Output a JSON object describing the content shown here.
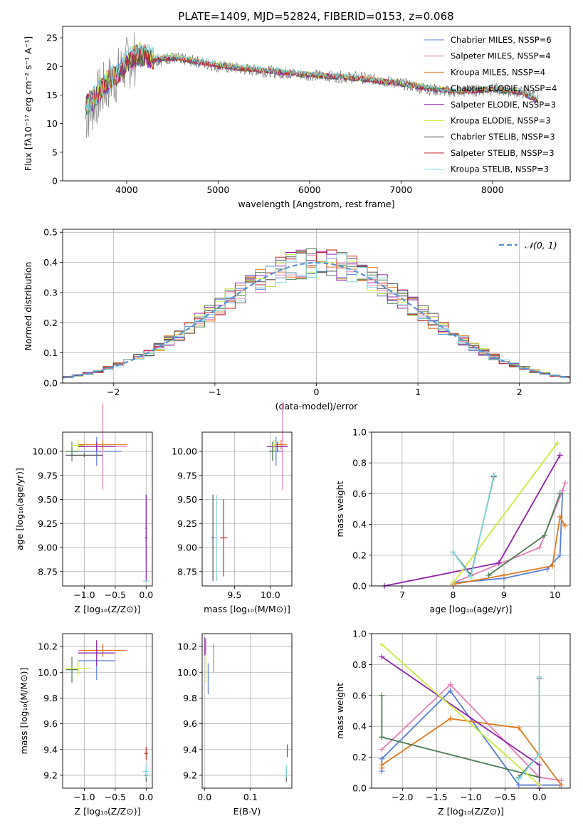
{
  "figure": {
    "title": "PLATE=1409, MJD=52824, FIBERID=0153, z=0.068"
  },
  "chart_data": [
    {
      "id": "spectrum",
      "type": "line",
      "xlabel": "wavelength [Angstrom, rest frame]",
      "ylabel": "Flux [fλ10⁻¹⁷ erg cm⁻² s⁻¹ A⁻¹]",
      "xlim": [
        3300,
        8850
      ],
      "ylim": [
        0,
        27
      ],
      "xticks": [
        4000,
        5000,
        6000,
        7000,
        8000
      ],
      "yticks": [
        0,
        5,
        10,
        15,
        20,
        25
      ],
      "legend_position": "top-right",
      "data_color": "#808080",
      "x": [
        3550,
        3700,
        3800,
        3900,
        4000,
        4100,
        4200,
        4300,
        4500,
        4700,
        5000,
        5300,
        5600,
        6000,
        6300,
        6600,
        7000,
        7300,
        7600,
        8000,
        8300,
        8500
      ],
      "data_flux": [
        11,
        15,
        17,
        18.5,
        20.5,
        21.5,
        22,
        21,
        21.5,
        21,
        20,
        19.5,
        19,
        18.5,
        18.2,
        18,
        17,
        16,
        15.5,
        16,
        15.5,
        15
      ],
      "series": [
        {
          "name": "Chabrier MILES, N_SSP=6",
          "color": "#5b7fd6",
          "values": [
            13,
            15.5,
            17.5,
            18.5,
            20.5,
            21.8,
            22,
            21.2,
            21.5,
            21,
            20.2,
            19.6,
            19.2,
            18.5,
            18.2,
            17.8,
            17,
            16.2,
            15.6,
            16,
            15.6,
            14
          ]
        },
        {
          "name": "Salpeter MILES, N_SSP=4",
          "color": "#e57fb8",
          "values": [
            13.2,
            15.6,
            17.6,
            18.6,
            20.6,
            21.9,
            22.1,
            21.3,
            21.6,
            21.1,
            20.3,
            19.7,
            19.3,
            18.6,
            18.3,
            17.9,
            17.1,
            16.3,
            15.7,
            16.1,
            15.7,
            14.1
          ]
        },
        {
          "name": "Kroupa MILES, N_SSP=4",
          "color": "#e07b1f",
          "values": [
            13.1,
            15.5,
            17.5,
            18.5,
            20.5,
            21.8,
            22,
            21.2,
            21.5,
            21,
            20.2,
            19.6,
            19.2,
            18.5,
            18.2,
            17.8,
            17.2,
            16.4,
            15.6,
            16,
            15.6,
            14
          ]
        },
        {
          "name": "Chabrier ELODIE, N_SSP=4",
          "color": "#4e7d55",
          "values": [
            12.8,
            15.3,
            17.3,
            18.4,
            20.4,
            21.7,
            21.9,
            21.1,
            21.4,
            20.9,
            20.1,
            19.5,
            19.1,
            18.4,
            18.1,
            17.7,
            16.9,
            16.1,
            15.5,
            15.9,
            15.5,
            13.9
          ]
        },
        {
          "name": "Salpeter ELODIE, N_SSP=3",
          "color": "#8e24aa",
          "values": [
            12.9,
            15.4,
            17.4,
            18.4,
            20.4,
            21.7,
            21.9,
            21.1,
            21.4,
            20.9,
            20.1,
            19.5,
            19.1,
            18.4,
            18.1,
            17.7,
            16.9,
            16.1,
            15.5,
            15.9,
            15.5,
            13.9
          ]
        },
        {
          "name": "Kroupa ELODIE, N_SSP=3",
          "color": "#c9ec3c",
          "values": [
            13,
            15.6,
            17.7,
            18.8,
            20.8,
            22.2,
            22.3,
            21.4,
            21.7,
            21.2,
            20.4,
            19.8,
            19.3,
            18.6,
            18.3,
            17.9,
            17.1,
            16.3,
            15.7,
            16.1,
            15.7,
            14.2
          ]
        },
        {
          "name": "Chabrier STELIB, N_SSP=3",
          "color": "#555555",
          "values": [
            13,
            15.5,
            17.5,
            18.5,
            20.5,
            21.8,
            22,
            21.2,
            21.5,
            21,
            20.2,
            19.6,
            19.2,
            18.5,
            18.2,
            17.8,
            17,
            16.2,
            15.6,
            16,
            15.6,
            14
          ]
        },
        {
          "name": "Salpeter STELIB, N_SSP=3",
          "color": "#c62828",
          "values": [
            13,
            15.5,
            17.5,
            18.5,
            20.5,
            21.8,
            22,
            21.2,
            21.5,
            21,
            20.2,
            19.6,
            19.2,
            18.5,
            18.2,
            17.8,
            17,
            16.2,
            15.6,
            16,
            15.6,
            14
          ]
        },
        {
          "name": "Kroupa STELIB, N_SSP=3",
          "color": "#7fd8dc",
          "values": [
            13.2,
            15.8,
            17.8,
            19,
            21,
            22.5,
            22.6,
            21.6,
            21.9,
            21.4,
            20.5,
            19.9,
            19.4,
            18.7,
            18.4,
            18,
            17.2,
            16.4,
            15.8,
            16.2,
            15.8,
            14.3
          ]
        }
      ]
    },
    {
      "id": "residuals",
      "type": "histogram",
      "xlabel": "(data-model)/error",
      "ylabel": "Normed distribution",
      "xlim": [
        -2.5,
        2.5
      ],
      "ylim": [
        0,
        0.51
      ],
      "xticks": [
        -2,
        -1,
        0,
        1,
        2
      ],
      "yticks": [
        0.0,
        0.1,
        0.2,
        0.3,
        0.4,
        0.5
      ],
      "grid": true,
      "legend_position": "top-right",
      "reference_curve": {
        "name": "𝒩(0, 1)",
        "color": "#5b8fd6",
        "mu": 0,
        "sigma": 1,
        "style": "dashed"
      },
      "bin_width": 0.1
    },
    {
      "id": "age_vs_Z",
      "type": "errorbar",
      "xlabel": "Z [log₁₀(Z/Z⊙)]",
      "ylabel": "age  [log₁₀(age/yr)]",
      "xlim": [
        -1.35,
        0.1
      ],
      "ylim": [
        8.6,
        10.2
      ],
      "xticks": [
        -1.0,
        -0.5,
        0.0
      ],
      "yticks": [
        8.75,
        9.0,
        9.25,
        9.5,
        9.75,
        10.0
      ],
      "points": [
        {
          "c": 0,
          "x": -0.8,
          "y": 10.0,
          "xe": 0.4,
          "ye": 0.15
        },
        {
          "c": 1,
          "x": -0.7,
          "y": 10.05,
          "xe": 0.4,
          "ye": 0.45
        },
        {
          "c": 2,
          "x": -0.7,
          "y": 10.07,
          "xe": 0.4,
          "ye": 0.05
        },
        {
          "c": 3,
          "x": -1.2,
          "y": 10.0,
          "xe": 0.1,
          "ye": 0.1
        },
        {
          "c": 4,
          "x": -0.8,
          "y": 10.05,
          "xe": 0.3,
          "ye": 0.05
        },
        {
          "c": 5,
          "x": -1.1,
          "y": 10.06,
          "xe": 0.1,
          "ye": 0.06
        },
        {
          "c": 6,
          "x": -1.0,
          "y": 9.96,
          "xe": 0.3,
          "ye": 0.02
        },
        {
          "c": 0,
          "x": 0.0,
          "y": 9.2,
          "xe": 0.02,
          "ye": 0.35
        },
        {
          "c": 4,
          "x": 0.0,
          "y": 9.1,
          "xe": 0.02,
          "ye": 0.45
        },
        {
          "c": 8,
          "x": 0.0,
          "y": 8.65,
          "xe": 0.05,
          "ye": 0.0
        }
      ]
    },
    {
      "id": "age_vs_mass",
      "type": "errorbar",
      "xlabel": "mass [log₁₀(M/M⊙)]",
      "ylabel": "",
      "xlim": [
        9.05,
        10.3
      ],
      "ylim": [
        8.6,
        10.2
      ],
      "xticks": [
        9.5,
        10.0
      ],
      "yticks": [
        8.75,
        9.0,
        9.25,
        9.5,
        9.75,
        10.0
      ],
      "points": [
        {
          "c": 0,
          "x": 10.08,
          "y": 10.0,
          "xe": 0.1,
          "ye": 0.15
        },
        {
          "c": 1,
          "x": 10.17,
          "y": 10.05,
          "xe": 0.05,
          "ye": 0.45
        },
        {
          "c": 2,
          "x": 10.15,
          "y": 10.07,
          "xe": 0.08,
          "ye": 0.05
        },
        {
          "c": 3,
          "x": 10.03,
          "y": 10.0,
          "xe": 0.03,
          "ye": 0.1
        },
        {
          "c": 4,
          "x": 10.1,
          "y": 10.05,
          "xe": 0.15,
          "ye": 0.05
        },
        {
          "c": 5,
          "x": 10.05,
          "y": 10.06,
          "xe": 0.03,
          "ye": 0.06
        },
        {
          "c": 6,
          "x": 9.2,
          "y": 9.1,
          "xe": 0.02,
          "ye": 0.45
        },
        {
          "c": 7,
          "x": 9.35,
          "y": 9.1,
          "xe": 0.05,
          "ye": 0.4
        },
        {
          "c": 8,
          "x": 9.25,
          "y": 9.1,
          "xe": 0.02,
          "ye": 0.45
        }
      ]
    },
    {
      "id": "weight_vs_age",
      "type": "line",
      "xlabel": "age  [log₁₀(age/yr)]",
      "ylabel": "mass weight",
      "xlim": [
        6.4,
        10.3
      ],
      "ylim": [
        0.0,
        1.0
      ],
      "xticks": [
        7,
        8,
        9,
        10
      ],
      "yticks": [
        0.0,
        0.2,
        0.4,
        0.6,
        0.8,
        1.0
      ],
      "series": [
        {
          "c": 0,
          "x": [
            8.0,
            9.0,
            9.85,
            10.1,
            10.15
          ],
          "y": [
            0.02,
            0.05,
            0.11,
            0.2,
            0.62
          ]
        },
        {
          "c": 1,
          "x": [
            8.0,
            9.7,
            10.15,
            10.2
          ],
          "y": [
            0.02,
            0.25,
            0.62,
            0.67
          ]
        },
        {
          "c": 2,
          "x": [
            8.0,
            9.0,
            9.95,
            10.1,
            10.2
          ],
          "y": [
            0.01,
            0.07,
            0.13,
            0.45,
            0.39
          ]
        },
        {
          "c": 3,
          "x": [
            8.7,
            9.8,
            10.1
          ],
          "y": [
            0.07,
            0.33,
            0.6
          ]
        },
        {
          "c": 4,
          "x": [
            6.65,
            8.9,
            10.1
          ],
          "y": [
            0.0,
            0.15,
            0.85
          ]
        },
        {
          "c": 5,
          "x": [
            8.0,
            10.05
          ],
          "y": [
            0.02,
            0.93
          ]
        },
        {
          "c": 6,
          "x": [
            8.0,
            8.35,
            8.8
          ],
          "y": [
            0.22,
            0.07,
            0.71
          ]
        },
        {
          "c": 8,
          "x": [
            8.0,
            8.35,
            8.8
          ],
          "y": [
            0.22,
            0.06,
            0.72
          ]
        }
      ]
    },
    {
      "id": "mass_vs_Z",
      "type": "errorbar",
      "xlabel": "Z [log₁₀(Z/Z⊙)]",
      "ylabel": "mass [log₁₀(M/M⊙)]",
      "xlim": [
        -1.35,
        0.1
      ],
      "ylim": [
        9.1,
        10.3
      ],
      "xticks": [
        -1.0,
        -0.5,
        0.0
      ],
      "yticks": [
        9.2,
        9.4,
        9.6,
        9.8,
        10.0,
        10.2
      ],
      "points": [
        {
          "c": 0,
          "x": -0.8,
          "y": 10.09,
          "xe": 0.3,
          "ye": 0.15
        },
        {
          "c": 1,
          "x": -0.7,
          "y": 10.17,
          "xe": 0.4,
          "ye": 0.05
        },
        {
          "c": 2,
          "x": -0.7,
          "y": 10.17,
          "xe": 0.35,
          "ye": 0.05
        },
        {
          "c": 3,
          "x": -1.2,
          "y": 10.02,
          "xe": 0.1,
          "ye": 0.1
        },
        {
          "c": 4,
          "x": -0.8,
          "y": 10.15,
          "xe": 0.3,
          "ye": 0.1
        },
        {
          "c": 5,
          "x": -1.1,
          "y": 10.03,
          "xe": 0.2,
          "ye": 0.06
        },
        {
          "c": 6,
          "x": 0.0,
          "y": 9.2,
          "xe": 0.03,
          "ye": 0.05
        },
        {
          "c": 7,
          "x": 0.0,
          "y": 9.37,
          "xe": 0.03,
          "ye": 0.05
        },
        {
          "c": 8,
          "x": 0.0,
          "y": 9.23,
          "xe": 0.05,
          "ye": 0.05
        }
      ]
    },
    {
      "id": "mass_vs_ebv",
      "type": "errorbar",
      "xlabel": "E(B-V)",
      "ylabel": "",
      "xlim": [
        -0.005,
        0.19
      ],
      "ylim": [
        9.1,
        10.3
      ],
      "xticks": [
        0.0,
        0.1
      ],
      "yticks": [
        9.2,
        9.4,
        9.6,
        9.8,
        10.0,
        10.2
      ],
      "points": [
        {
          "c": 0,
          "x": 0.008,
          "y": 9.95,
          "xe": 0.0,
          "ye": 0.12
        },
        {
          "c": 1,
          "x": 0.003,
          "y": 10.2,
          "xe": 0.0,
          "ye": 0.06
        },
        {
          "c": 2,
          "x": 0.02,
          "y": 10.11,
          "xe": 0.0,
          "ye": 0.11
        },
        {
          "c": 4,
          "x": 0.001,
          "y": 10.2,
          "xe": 0.0,
          "ye": 0.07
        },
        {
          "c": 5,
          "x": 0.003,
          "y": 10.02,
          "xe": 0.0,
          "ye": 0.1
        },
        {
          "c": 6,
          "x": 0.178,
          "y": 9.2,
          "xe": 0.0,
          "ye": 0.05
        },
        {
          "c": 7,
          "x": 0.18,
          "y": 9.39,
          "xe": 0.0,
          "ye": 0.05
        },
        {
          "c": 8,
          "x": 0.178,
          "y": 9.23,
          "xe": 0.0,
          "ye": 0.05
        }
      ]
    },
    {
      "id": "weight_vs_Z",
      "type": "line",
      "xlabel": "Z [log₁₀(Z/Z⊙)]",
      "ylabel": "mass weight",
      "xlim": [
        -2.45,
        0.45
      ],
      "ylim": [
        0.0,
        1.0
      ],
      "xticks": [
        -2.0,
        -1.5,
        -1.0,
        -0.5,
        0.0
      ],
      "yticks": [
        0.0,
        0.2,
        0.4,
        0.6,
        0.8,
        1.0
      ],
      "series": [
        {
          "c": 0,
          "x": [
            -2.3,
            -2.3,
            -1.3,
            -0.3,
            0.3
          ],
          "y": [
            0.11,
            0.19,
            0.63,
            0.02,
            0.02
          ]
        },
        {
          "c": 1,
          "x": [
            -2.3,
            -1.3,
            0.0,
            0.32
          ],
          "y": [
            0.25,
            0.67,
            0.07,
            0.05
          ]
        },
        {
          "c": 2,
          "x": [
            -2.3,
            -2.3,
            -1.3,
            -0.3,
            0.32
          ],
          "y": [
            0.13,
            0.15,
            0.45,
            0.39,
            0.02
          ]
        },
        {
          "c": 3,
          "x": [
            -2.3,
            -2.3,
            -2.3,
            0.0
          ],
          "y": [
            0.33,
            0.6,
            0.33,
            0.07
          ]
        },
        {
          "c": 4,
          "x": [
            -2.3,
            0.0,
            0.0
          ],
          "y": [
            0.85,
            0.15,
            0.0
          ]
        },
        {
          "c": 5,
          "x": [
            -2.3,
            0.0
          ],
          "y": [
            0.93,
            0.02
          ]
        },
        {
          "c": 6,
          "x": [
            -0.3,
            0.0,
            0.0
          ],
          "y": [
            0.07,
            0.22,
            0.71
          ]
        },
        {
          "c": 8,
          "x": [
            -0.3,
            0.0,
            0.0
          ],
          "y": [
            0.06,
            0.22,
            0.72
          ]
        }
      ]
    }
  ]
}
